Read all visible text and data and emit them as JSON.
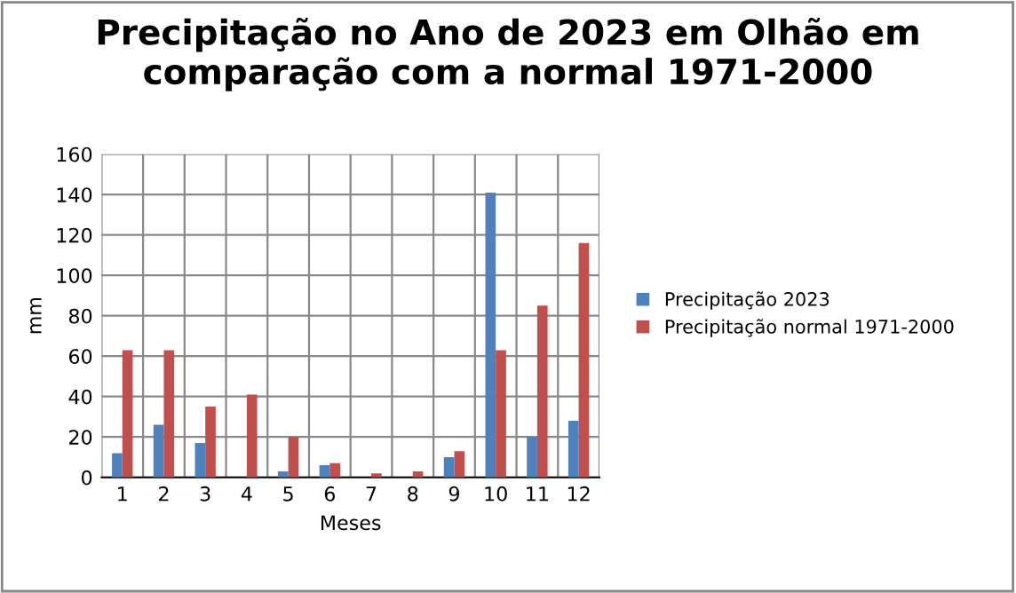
{
  "chart_data": {
    "type": "bar",
    "title": "Precipitação no Ano de 2023 em Olhão em\ncomparação com a normal 1971-2000",
    "xlabel": "Meses",
    "ylabel": "mm",
    "categories": [
      "1",
      "2",
      "3",
      "4",
      "5",
      "6",
      "7",
      "8",
      "9",
      "10",
      "11",
      "12"
    ],
    "series": [
      {
        "name": "Precipitação 2023",
        "color": "#4f81bd",
        "values": [
          12,
          26,
          17,
          0,
          3,
          6,
          0,
          0,
          10,
          141,
          20,
          28
        ]
      },
      {
        "name": "Precipitação normal 1971-2000",
        "color": "#c0504d",
        "values": [
          63,
          63,
          35,
          41,
          20,
          7,
          2,
          3,
          13,
          63,
          85,
          116
        ]
      }
    ],
    "ylim": [
      0,
      160
    ],
    "yticks": [
      0,
      20,
      40,
      60,
      80,
      100,
      120,
      140,
      160
    ],
    "grid": true,
    "legend": "right"
  }
}
